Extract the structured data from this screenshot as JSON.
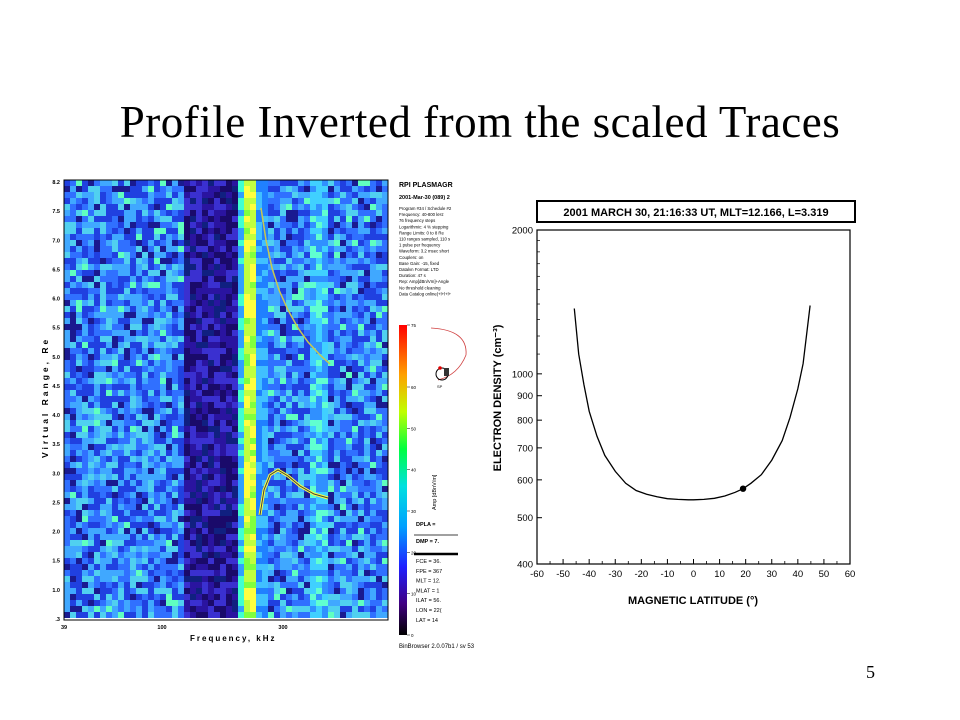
{
  "slide": {
    "title": "Profile Inverted from the scaled Traces",
    "page_number": "5"
  },
  "left_panel": {
    "y_axis_label": "Virtual Range, Re",
    "x_axis_label": "Frequency, kHz",
    "y_ticks": [
      "8.2",
      "7.5",
      "7.0",
      "6.5",
      "6.0",
      "5.5",
      "5.0",
      "4.5",
      "4.0",
      "3.5",
      "3.0",
      "2.5",
      "2.0",
      "1.5",
      "1.0",
      ".3"
    ],
    "x_ticks": [
      "39",
      "100",
      "300"
    ],
    "header": "RPI PLASMAGR",
    "date_line": "2001-Mar-30 (089) 2",
    "info_lines": [
      "Program #34 / Schedule #2",
      "Frequency: 40-800 kHz",
      "76 frequency steps",
      "Logarithmic: 4 % stepping",
      "Range Limits: 0 to 8  Re",
      "110 ranges sampled, 110 s",
      "1 pulse per frequency",
      "Waveform: 3.2 msec short",
      "Couplers: on",
      "Base Gain: -15, fixed",
      "Datalvn Format: LTD",
      "Duration: 47 s",
      "Rep: Amp[dBn/Vm]+Angle",
      "No threshold cleaning",
      "Data Catalog online(+l+l+l+"
    ],
    "colorbar_ticks": [
      "75",
      "60",
      "50",
      "40",
      "30",
      "20",
      "10",
      "0"
    ],
    "colorbar_label": "Amp [dBnV/m]",
    "params": [
      "DPLA = ",
      "DMP =  7.",
      "FCE = 36.",
      "FPE = 367",
      "MLT = 12.",
      "MLAT = 1",
      "ILAT = 56.",
      "LON = 22(",
      "LAT = 14"
    ],
    "footer": "BinBrowser 2.0.07b1 / sv 53",
    "orbit_label": "SP"
  },
  "chart_data": {
    "type": "line",
    "title": "2001 MARCH 30, 21:16:33 UT, MLT=12.166, L=3.319",
    "xlabel": "MAGNETIC LATITUDE (°)",
    "ylabel": "ELECTRON DENSITY (cm⁻³)",
    "xlim": [
      -60,
      60
    ],
    "ylim": [
      400,
      2000
    ],
    "yscale": "log",
    "x_ticks": [
      -60,
      -50,
      -40,
      -30,
      -20,
      -10,
      0,
      10,
      20,
      30,
      40,
      50,
      60
    ],
    "y_ticks": [
      400,
      500,
      600,
      700,
      800,
      900,
      1000,
      2000
    ],
    "series": [
      {
        "x": [
          -45.7,
          -44,
          -42,
          -40,
          -37,
          -34,
          -30,
          -26,
          -22,
          -18,
          -14,
          -10,
          -6,
          -2,
          0,
          4,
          8,
          12,
          16,
          19,
          22,
          26,
          30,
          34,
          37,
          40,
          42,
          44.7
        ],
        "y": [
          1370,
          1100,
          950,
          835,
          740,
          675,
          625,
          590,
          570,
          560,
          553,
          548,
          546,
          545,
          545,
          546,
          549,
          555,
          565,
          575,
          590,
          615,
          660,
          725,
          810,
          930,
          1050,
          1390
        ]
      }
    ],
    "marker": {
      "x": 19,
      "y": 575
    }
  }
}
